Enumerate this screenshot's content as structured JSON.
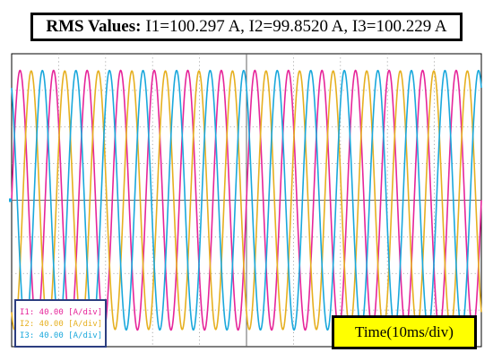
{
  "title": {
    "prefix": "RMS Values:",
    "text": "I1=100.297 A, I2=99.8520 A, I3=100.229 A"
  },
  "legend": [
    {
      "label": "I1:  40.00  [A/div]",
      "color": "#e6259a"
    },
    {
      "label": "I2:  40.00  [A/div]",
      "color": "#e6b020"
    },
    {
      "label": "I3:  40.00  [A/div]",
      "color": "#1aa8dc"
    }
  ],
  "time_label": "Time(10ms/div)",
  "chart_data": {
    "type": "line",
    "xlabel": "Time(10ms/div)",
    "ylabel": "",
    "x_unit": "ms",
    "xlim": [
      -50,
      50
    ],
    "ylim": [
      -160,
      160
    ],
    "y_per_div": 40,
    "x_per_div": 10,
    "grid": true,
    "frequency_hz": 140,
    "series": [
      {
        "name": "I1",
        "color": "#e6259a",
        "amplitude": 141.8,
        "phase_deg": 0
      },
      {
        "name": "I2",
        "color": "#e6b020",
        "amplitude": 141.2,
        "phase_deg": -120
      },
      {
        "name": "I3",
        "color": "#1aa8dc",
        "amplitude": 141.7,
        "phase_deg": 120
      }
    ]
  }
}
